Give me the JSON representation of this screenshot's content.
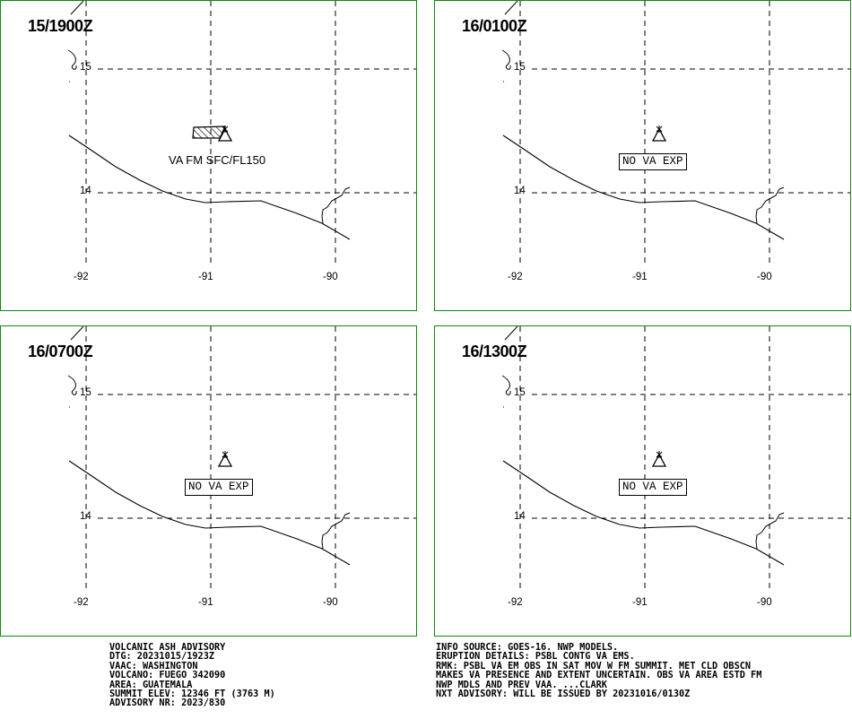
{
  "panels": [
    {
      "time": "15/1900Z",
      "label": "VA FM SFC/FL150",
      "ash_area": true
    },
    {
      "time": "16/0100Z",
      "label": "NO VA EXP",
      "ash_area": false
    },
    {
      "time": "16/0700Z",
      "label": "NO VA EXP",
      "ash_area": false
    },
    {
      "time": "16/1300Z",
      "label": "NO VA EXP",
      "ash_area": false
    }
  ],
  "grid": {
    "lat_labels": [
      "15",
      "14"
    ],
    "lon_labels": [
      "-92",
      "-91",
      "-90"
    ]
  },
  "advisory_left": [
    "VOLCANIC ASH ADVISORY",
    "DTG: 20231015/1923Z",
    "VAAC: WASHINGTON",
    "VOLCANO: FUEGO 342090",
    "AREA: GUATEMALA",
    "SUMMIT ELEV: 12346 FT (3763 M)",
    "ADVISORY NR: 2023/830"
  ],
  "advisory_right": [
    "INFO SOURCE: GOES-16. NWP MODELS.",
    "ERUPTION DETAILS: PSBL CONTG VA EMS.",
    "RMK: PSBL VA EM OBS IN SAT MOV W FM SUMMIT. MET CLD OBSCN",
    "MAKES VA PRESENCE AND EXTENT UNCERTAIN. OBS VA AREA ESTD FM",
    "NWP MDLS AND PREV VAA. ...CLARK",
    "NXT ADVISORY: WILL BE ISSUED BY 20231016/0130Z"
  ],
  "colors": {
    "panel_border": "#118811",
    "map_lines": "#000000"
  }
}
